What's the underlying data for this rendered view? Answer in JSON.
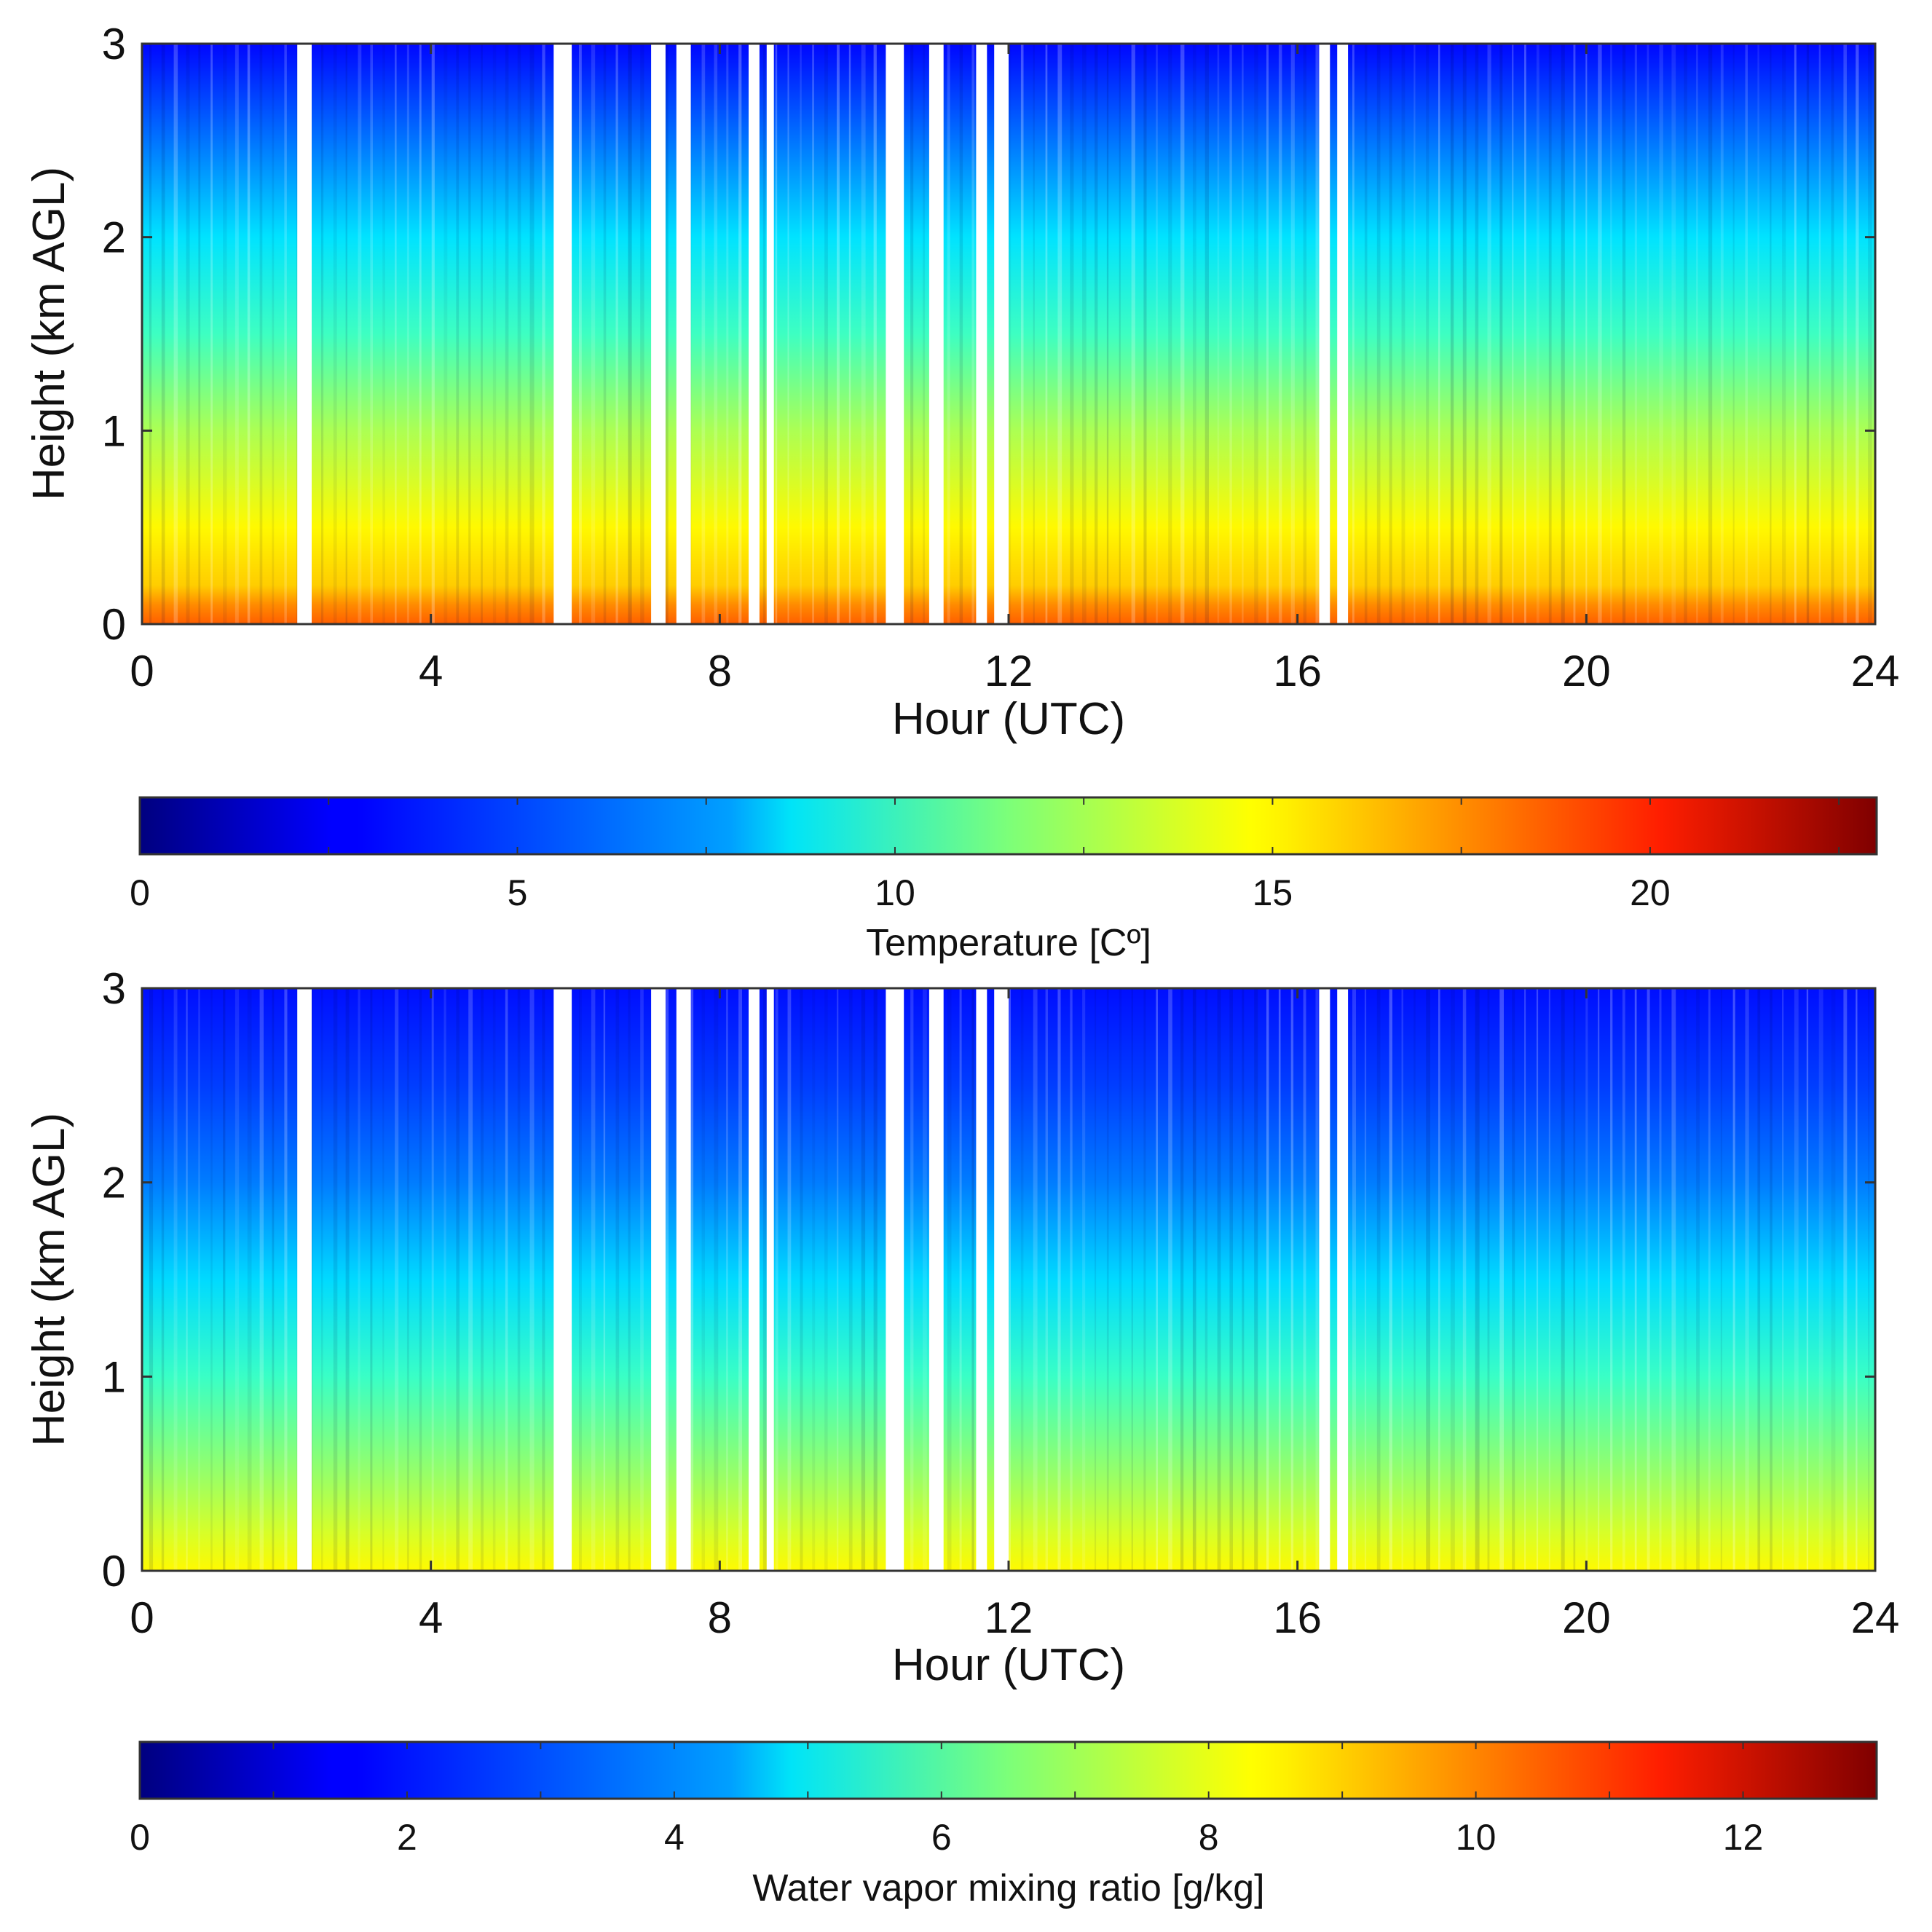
{
  "chart_data": [
    {
      "type": "heatmap",
      "title": "",
      "xlabel": "Hour (UTC)",
      "ylabel": "Height (km AGL)",
      "xlim": [
        0,
        24
      ],
      "ylim": [
        0,
        3
      ],
      "xticks": [
        "0",
        "4",
        "8",
        "12",
        "16",
        "20",
        "24"
      ],
      "yticks": [
        "0",
        "1",
        "2",
        "3"
      ],
      "data_gaps_hours": [
        [
          2.15,
          2.35
        ],
        [
          5.7,
          5.95
        ],
        [
          7.05,
          7.25
        ],
        [
          7.4,
          7.6
        ],
        [
          8.4,
          8.55
        ],
        [
          8.65,
          8.75
        ],
        [
          10.3,
          10.55
        ],
        [
          10.9,
          11.1
        ],
        [
          11.55,
          11.7
        ],
        [
          11.8,
          12.0
        ],
        [
          16.3,
          16.45
        ],
        [
          16.55,
          16.7
        ]
      ],
      "temperature_profile_C": {
        "heights_km": [
          0.0,
          0.1,
          0.2,
          0.5,
          1.0,
          1.5,
          2.0,
          2.5,
          3.0
        ],
        "values": [
          18,
          17,
          15.5,
          14.5,
          12.5,
          10,
          8,
          5.5,
          3
        ]
      },
      "colorbar": {
        "label": "Temperature [Cº]",
        "range": [
          0,
          23
        ],
        "ticks": [
          "0",
          "5",
          "10",
          "15",
          "20"
        ]
      }
    },
    {
      "type": "heatmap",
      "title": "",
      "xlabel": "Hour (UTC)",
      "ylabel": "Height (km AGL)",
      "xlim": [
        0,
        24
      ],
      "ylim": [
        0,
        3
      ],
      "xticks": [
        "0",
        "4",
        "8",
        "12",
        "16",
        "20",
        "24"
      ],
      "yticks": [
        "0",
        "1",
        "2",
        "3"
      ],
      "data_gaps_hours": [
        [
          2.15,
          2.35
        ],
        [
          5.7,
          5.95
        ],
        [
          7.05,
          7.25
        ],
        [
          7.4,
          7.6
        ],
        [
          8.4,
          8.55
        ],
        [
          8.65,
          8.75
        ],
        [
          10.3,
          10.55
        ],
        [
          10.9,
          11.1
        ],
        [
          11.55,
          11.7
        ],
        [
          11.8,
          12.0
        ],
        [
          16.3,
          16.45
        ],
        [
          16.55,
          16.7
        ]
      ],
      "water_vapor_profile_gkg": {
        "heights_km": [
          0.0,
          0.2,
          0.5,
          1.0,
          1.5,
          2.0,
          2.5,
          3.0
        ],
        "values": [
          8.2,
          7.6,
          6.8,
          5.6,
          4.4,
          3.2,
          2.4,
          1.8
        ]
      },
      "colorbar": {
        "label": "Water vapor mixing ratio [g/kg]",
        "range": [
          0,
          13
        ],
        "ticks": [
          "0",
          "2",
          "4",
          "6",
          "8",
          "10",
          "12"
        ]
      }
    }
  ]
}
